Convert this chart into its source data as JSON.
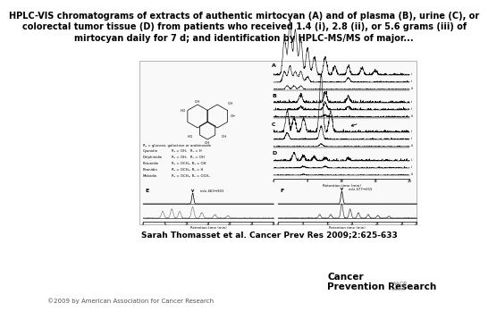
{
  "title_line1": "HPLC-VIS chromatograms of extracts of authentic mirtocyan (A) and of plasma (B), urine (C), or",
  "title_line2": "colorectal tumor tissue (D) from patients who received 1.4 (i), 2.8 (ii), or 5.6 grams (iii) of",
  "title_line3": "mirtocyan daily for 7 d; and identification by HPLC-MS/MS of major...",
  "citation": "Sarah Thomasset et al. Cancer Prev Res 2009;2:625-633",
  "copyright": "©2009 by American Association for Cancer Research",
  "journal_name": "Cancer\nPrevention Research",
  "bg_color": "#ffffff",
  "text_color": "#000000",
  "title_fontsize": 7.0,
  "citation_fontsize": 6.5,
  "copyright_fontsize": 5.0
}
